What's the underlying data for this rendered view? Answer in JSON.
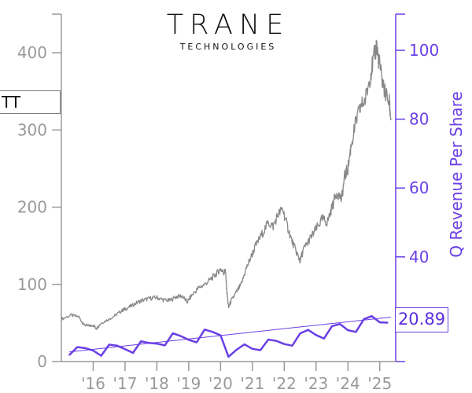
{
  "logo": {
    "wordmark": "TRANE",
    "subtitle": "TECHNOLOGIES"
  },
  "ticker": "TT",
  "last_value_label": "20.89",
  "colors": {
    "price_line": "#888888",
    "revenue_line": "#6a3fe6",
    "axis_left": "#9a9a9a",
    "axis_right": "#6a3fe6"
  },
  "chart_data": {
    "type": "line",
    "left_axis": {
      "ticks": [
        0,
        100,
        200,
        300,
        400
      ],
      "ylim": [
        0,
        450
      ],
      "color": "#9a9a9a"
    },
    "right_axis": {
      "label": "Q Revenue Per Share",
      "ticks": [
        40,
        60,
        80,
        100
      ],
      "ylim": [
        9.6,
        110.5
      ],
      "color": "#6a3fe6"
    },
    "x_axis": {
      "tick_labels": [
        "'16",
        "'17",
        "'18",
        "'19",
        "'20",
        "'21",
        "'22",
        "'23",
        "'24",
        "'25"
      ],
      "tick_years": [
        2016,
        2017,
        2018,
        2019,
        2020,
        2021,
        2022,
        2023,
        2024,
        2025
      ],
      "xlim": [
        2015.0,
        2025.5
      ]
    },
    "series": [
      {
        "axis": "left",
        "points": [
          [
            2015.0,
            55
          ],
          [
            2015.3,
            60
          ],
          [
            2015.55,
            58
          ],
          [
            2015.7,
            48
          ],
          [
            2015.85,
            46
          ],
          [
            2016.0,
            47
          ],
          [
            2016.1,
            43
          ],
          [
            2016.25,
            50
          ],
          [
            2016.5,
            55
          ],
          [
            2016.7,
            60
          ],
          [
            2016.9,
            66
          ],
          [
            2017.0,
            68
          ],
          [
            2017.2,
            72
          ],
          [
            2017.4,
            77
          ],
          [
            2017.6,
            80
          ],
          [
            2017.8,
            82
          ],
          [
            2018.0,
            83
          ],
          [
            2018.2,
            80
          ],
          [
            2018.4,
            79
          ],
          [
            2018.6,
            84
          ],
          [
            2018.8,
            85
          ],
          [
            2018.95,
            77
          ],
          [
            2019.1,
            86
          ],
          [
            2019.3,
            95
          ],
          [
            2019.5,
            100
          ],
          [
            2019.7,
            107
          ],
          [
            2019.85,
            113
          ],
          [
            2020.0,
            120
          ],
          [
            2020.1,
            115
          ],
          [
            2020.15,
            118
          ],
          [
            2020.2,
            90
          ],
          [
            2020.25,
            70
          ],
          [
            2020.35,
            80
          ],
          [
            2020.5,
            90
          ],
          [
            2020.65,
            100
          ],
          [
            2020.8,
            120
          ],
          [
            2020.95,
            135
          ],
          [
            2021.1,
            150
          ],
          [
            2021.3,
            165
          ],
          [
            2021.5,
            180
          ],
          [
            2021.65,
            175
          ],
          [
            2021.8,
            190
          ],
          [
            2021.95,
            198
          ],
          [
            2022.1,
            175
          ],
          [
            2022.25,
            155
          ],
          [
            2022.4,
            140
          ],
          [
            2022.5,
            130
          ],
          [
            2022.6,
            145
          ],
          [
            2022.75,
            155
          ],
          [
            2022.9,
            165
          ],
          [
            2023.05,
            175
          ],
          [
            2023.2,
            185
          ],
          [
            2023.35,
            180
          ],
          [
            2023.5,
            200
          ],
          [
            2023.65,
            220
          ],
          [
            2023.8,
            210
          ],
          [
            2023.9,
            240
          ],
          [
            2024.0,
            250
          ],
          [
            2024.1,
            280
          ],
          [
            2024.25,
            310
          ],
          [
            2024.4,
            330
          ],
          [
            2024.55,
            340
          ],
          [
            2024.7,
            370
          ],
          [
            2024.8,
            390
          ],
          [
            2024.9,
            410
          ],
          [
            2024.95,
            395
          ],
          [
            2025.05,
            370
          ],
          [
            2025.15,
            350
          ],
          [
            2025.3,
            335
          ],
          [
            2025.35,
            315
          ]
        ]
      },
      {
        "name": "Q Revenue Per Share",
        "axis": "right",
        "points": [
          [
            2015.25,
            11.5
          ],
          [
            2015.5,
            13.8
          ],
          [
            2015.75,
            13.5
          ],
          [
            2016.0,
            12.8
          ],
          [
            2016.25,
            11.3
          ],
          [
            2016.5,
            14.5
          ],
          [
            2016.75,
            14.2
          ],
          [
            2017.0,
            13.2
          ],
          [
            2017.25,
            12.1
          ],
          [
            2017.5,
            15.5
          ],
          [
            2017.75,
            15.0
          ],
          [
            2018.0,
            14.8
          ],
          [
            2018.25,
            14.3
          ],
          [
            2018.5,
            17.8
          ],
          [
            2018.75,
            17.0
          ],
          [
            2019.0,
            15.9
          ],
          [
            2019.25,
            15.2
          ],
          [
            2019.5,
            18.9
          ],
          [
            2019.75,
            18.2
          ],
          [
            2020.0,
            17.2
          ],
          [
            2020.25,
            11.0
          ],
          [
            2020.5,
            13.0
          ],
          [
            2020.75,
            14.6
          ],
          [
            2021.0,
            13.3
          ],
          [
            2021.25,
            12.9
          ],
          [
            2021.5,
            16.0
          ],
          [
            2021.75,
            15.6
          ],
          [
            2022.0,
            14.7
          ],
          [
            2022.25,
            14.2
          ],
          [
            2022.5,
            17.8
          ],
          [
            2022.75,
            18.8
          ],
          [
            2023.0,
            17.3
          ],
          [
            2023.25,
            16.3
          ],
          [
            2023.5,
            19.9
          ],
          [
            2023.75,
            20.5
          ],
          [
            2024.0,
            18.7
          ],
          [
            2024.25,
            18.2
          ],
          [
            2024.5,
            21.9
          ],
          [
            2024.75,
            22.8
          ],
          [
            2025.0,
            21.0
          ],
          [
            2025.25,
            20.89
          ]
        ]
      },
      {
        "axis": "right",
        "style": "trendline",
        "points": [
          [
            2015.25,
            12.4
          ],
          [
            2025.35,
            22.5
          ]
        ]
      }
    ]
  }
}
